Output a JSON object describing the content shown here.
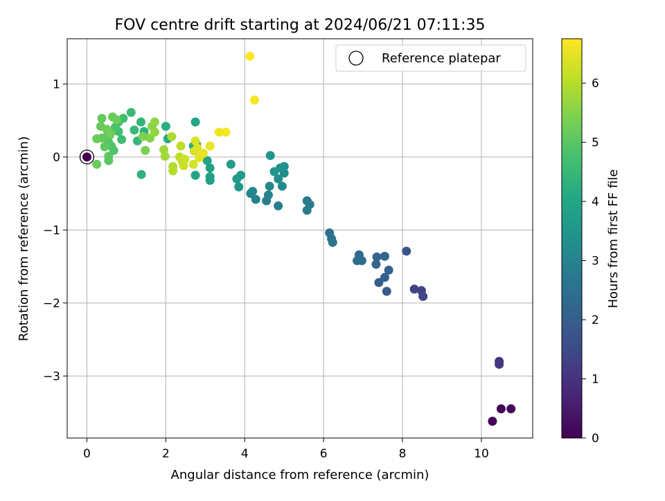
{
  "chart_data": {
    "type": "scatter",
    "title": "FOV centre drift starting at 2024/06/21 07:11:35",
    "xlabel": "Angular distance from reference (arcmin)",
    "ylabel": "Rotation from reference (arcmin)",
    "xlim": [
      -0.5,
      11.3
    ],
    "ylim": [
      -3.85,
      1.62
    ],
    "xticks": [
      0,
      2,
      4,
      6,
      8,
      10
    ],
    "yticks": [
      -3,
      -2,
      -1,
      0,
      1
    ],
    "grid": true,
    "legend": {
      "position": "top-right",
      "entries": [
        "Reference platepar"
      ]
    },
    "reference_point": {
      "x": 0,
      "y": 0
    },
    "colorbar": {
      "label": "Hours from first FF file",
      "min": 0,
      "max": 6.75,
      "ticks": [
        0,
        1,
        2,
        3,
        4,
        5,
        6
      ],
      "colormap": "viridis"
    },
    "series": [
      {
        "points": [
          {
            "x": 0.0,
            "y": 0.0,
            "c": 0.0
          },
          {
            "x": 10.28,
            "y": -3.62,
            "c": 0.05
          },
          {
            "x": 10.5,
            "y": -3.45,
            "c": 0.1
          },
          {
            "x": 10.75,
            "y": -3.45,
            "c": 0.15
          },
          {
            "x": 10.45,
            "y": -2.8,
            "c": 1.0
          },
          {
            "x": 10.45,
            "y": -2.84,
            "c": 1.05
          },
          {
            "x": 8.3,
            "y": -1.81,
            "c": 1.3
          },
          {
            "x": 8.48,
            "y": -1.83,
            "c": 1.35
          },
          {
            "x": 8.52,
            "y": -1.91,
            "c": 1.4
          },
          {
            "x": 8.1,
            "y": -1.29,
            "c": 1.75
          },
          {
            "x": 7.6,
            "y": -1.84,
            "c": 1.9
          },
          {
            "x": 7.4,
            "y": -1.72,
            "c": 2.0
          },
          {
            "x": 7.55,
            "y": -1.65,
            "c": 2.05
          },
          {
            "x": 7.65,
            "y": -1.55,
            "c": 2.1
          },
          {
            "x": 7.55,
            "y": -1.36,
            "c": 2.15
          },
          {
            "x": 7.35,
            "y": -1.37,
            "c": 2.2
          },
          {
            "x": 7.33,
            "y": -1.47,
            "c": 2.25
          },
          {
            "x": 6.9,
            "y": -1.34,
            "c": 2.3
          },
          {
            "x": 6.85,
            "y": -1.42,
            "c": 2.35
          },
          {
            "x": 6.97,
            "y": -1.42,
            "c": 2.4
          },
          {
            "x": 6.15,
            "y": -1.04,
            "c": 2.5
          },
          {
            "x": 6.2,
            "y": -1.12,
            "c": 2.55
          },
          {
            "x": 6.23,
            "y": -1.17,
            "c": 2.6
          },
          {
            "x": 5.58,
            "y": -0.6,
            "c": 2.7
          },
          {
            "x": 5.65,
            "y": -0.65,
            "c": 2.75
          },
          {
            "x": 5.58,
            "y": -0.73,
            "c": 2.8
          },
          {
            "x": 4.85,
            "y": -0.67,
            "c": 2.85
          },
          {
            "x": 4.55,
            "y": -0.6,
            "c": 2.9
          },
          {
            "x": 4.6,
            "y": -0.52,
            "c": 2.95
          },
          {
            "x": 4.28,
            "y": -0.58,
            "c": 3.0
          },
          {
            "x": 4.2,
            "y": -0.47,
            "c": 3.05
          },
          {
            "x": 4.15,
            "y": -0.5,
            "c": 3.1
          },
          {
            "x": 4.63,
            "y": -0.4,
            "c": 3.15
          },
          {
            "x": 4.95,
            "y": -0.4,
            "c": 3.2
          },
          {
            "x": 4.85,
            "y": -0.3,
            "c": 3.25
          },
          {
            "x": 5.0,
            "y": -0.22,
            "c": 3.3
          },
          {
            "x": 5.0,
            "y": -0.13,
            "c": 3.35
          },
          {
            "x": 4.9,
            "y": -0.15,
            "c": 3.4
          },
          {
            "x": 4.75,
            "y": -0.2,
            "c": 3.45
          },
          {
            "x": 4.65,
            "y": 0.02,
            "c": 3.5
          },
          {
            "x": 3.85,
            "y": -0.41,
            "c": 3.55
          },
          {
            "x": 3.8,
            "y": -0.3,
            "c": 3.6
          },
          {
            "x": 3.9,
            "y": -0.25,
            "c": 3.65
          },
          {
            "x": 3.65,
            "y": -0.1,
            "c": 3.7
          },
          {
            "x": 3.12,
            "y": -0.32,
            "c": 3.75
          },
          {
            "x": 3.12,
            "y": -0.27,
            "c": 3.8
          },
          {
            "x": 3.12,
            "y": -0.15,
            "c": 3.85
          },
          {
            "x": 3.05,
            "y": -0.05,
            "c": 3.9
          },
          {
            "x": 2.75,
            "y": -0.25,
            "c": 3.95
          },
          {
            "x": 2.75,
            "y": 0.48,
            "c": 4.0
          },
          {
            "x": 2.78,
            "y": 0.17,
            "c": 4.05
          },
          {
            "x": 2.7,
            "y": 0.15,
            "c": 4.1
          },
          {
            "x": 2.05,
            "y": 0.25,
            "c": 4.15
          },
          {
            "x": 2.0,
            "y": 0.42,
            "c": 4.2
          },
          {
            "x": 1.38,
            "y": -0.24,
            "c": 4.3
          },
          {
            "x": 1.45,
            "y": 0.35,
            "c": 4.35
          },
          {
            "x": 1.37,
            "y": 0.48,
            "c": 4.4
          },
          {
            "x": 1.28,
            "y": 0.22,
            "c": 4.45
          },
          {
            "x": 1.2,
            "y": 0.37,
            "c": 4.5
          },
          {
            "x": 1.12,
            "y": 0.61,
            "c": 4.55
          },
          {
            "x": 0.92,
            "y": 0.53,
            "c": 4.6
          },
          {
            "x": 0.88,
            "y": 0.24,
            "c": 4.65
          },
          {
            "x": 0.8,
            "y": 0.35,
            "c": 4.7
          },
          {
            "x": 0.8,
            "y": 0.48,
            "c": 4.75
          },
          {
            "x": 0.72,
            "y": 0.41,
            "c": 4.8
          },
          {
            "x": 0.68,
            "y": 0.09,
            "c": 4.85
          },
          {
            "x": 0.62,
            "y": 0.15,
            "c": 4.9
          },
          {
            "x": 0.58,
            "y": 0.3,
            "c": 4.92
          },
          {
            "x": 0.55,
            "y": 0.2,
            "c": 4.95
          },
          {
            "x": 0.55,
            "y": -0.05,
            "c": 5.0
          },
          {
            "x": 0.55,
            "y": 0.01,
            "c": 5.02
          },
          {
            "x": 0.5,
            "y": 0.28,
            "c": 5.05
          },
          {
            "x": 0.45,
            "y": 0.14,
            "c": 5.08
          },
          {
            "x": 0.38,
            "y": 0.26,
            "c": 5.1
          },
          {
            "x": 0.38,
            "y": 0.53,
            "c": 5.12
          },
          {
            "x": 0.35,
            "y": 0.42,
            "c": 5.15
          },
          {
            "x": 0.25,
            "y": -0.1,
            "c": 5.18
          },
          {
            "x": 0.25,
            "y": 0.25,
            "c": 5.2
          },
          {
            "x": 0.65,
            "y": 0.55,
            "c": 5.22
          },
          {
            "x": 0.75,
            "y": 0.51,
            "c": 5.25
          },
          {
            "x": 0.5,
            "y": 0.38,
            "c": 5.28
          },
          {
            "x": 0.6,
            "y": 0.32,
            "c": 5.3
          },
          {
            "x": 1.48,
            "y": 0.09,
            "c": 5.4
          },
          {
            "x": 1.42,
            "y": 0.28,
            "c": 5.45
          },
          {
            "x": 1.6,
            "y": 0.26,
            "c": 5.5
          },
          {
            "x": 1.65,
            "y": 0.42,
            "c": 5.55
          },
          {
            "x": 1.72,
            "y": 0.48,
            "c": 5.6
          },
          {
            "x": 1.72,
            "y": 0.34,
            "c": 5.65
          },
          {
            "x": 1.95,
            "y": 0.1,
            "c": 5.75
          },
          {
            "x": 1.98,
            "y": 0.01,
            "c": 5.8
          },
          {
            "x": 2.15,
            "y": 0.28,
            "c": 5.9
          },
          {
            "x": 2.18,
            "y": -0.13,
            "c": 5.95
          },
          {
            "x": 2.18,
            "y": -0.19,
            "c": 6.0
          },
          {
            "x": 2.35,
            "y": 0.0,
            "c": 6.05
          },
          {
            "x": 2.38,
            "y": 0.15,
            "c": 6.1
          },
          {
            "x": 2.42,
            "y": -0.06,
            "c": 6.15
          },
          {
            "x": 2.45,
            "y": -0.12,
            "c": 6.2
          },
          {
            "x": 2.48,
            "y": -0.03,
            "c": 6.25
          },
          {
            "x": 2.7,
            "y": -0.1,
            "c": 6.3
          },
          {
            "x": 2.72,
            "y": 0.08,
            "c": 6.35
          },
          {
            "x": 2.75,
            "y": 0.22,
            "c": 6.4
          },
          {
            "x": 2.8,
            "y": 0.12,
            "c": 6.42
          },
          {
            "x": 2.85,
            "y": -0.01,
            "c": 6.45
          },
          {
            "x": 2.95,
            "y": 0.05,
            "c": 6.5
          },
          {
            "x": 3.12,
            "y": 0.15,
            "c": 6.55
          },
          {
            "x": 3.35,
            "y": 0.34,
            "c": 6.6
          },
          {
            "x": 3.52,
            "y": 0.34,
            "c": 6.65
          },
          {
            "x": 4.25,
            "y": 0.78,
            "c": 6.7
          },
          {
            "x": 4.13,
            "y": 1.38,
            "c": 6.75
          }
        ]
      }
    ]
  }
}
